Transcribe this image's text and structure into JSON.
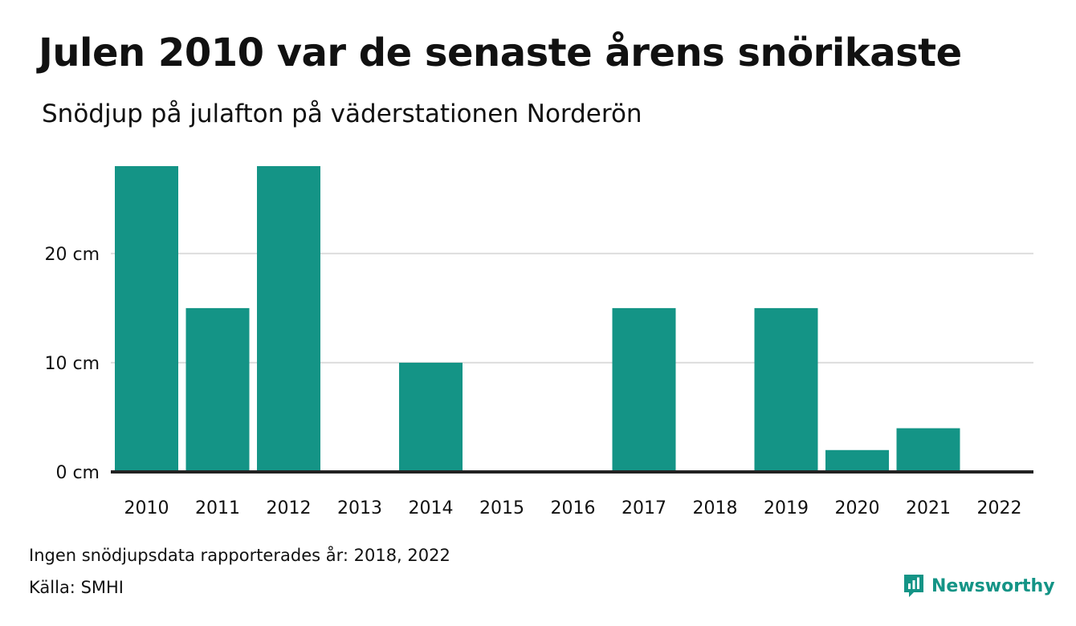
{
  "title": "Julen 2010 var de senaste årens snörikaste",
  "subtitle": "Snödjup på julafton på väderstationen Norderön",
  "footnote": "Ingen snödjupsdata rapporterades år: 2018, 2022",
  "source_prefix": "Källa: ",
  "source": "SMHI",
  "brand": {
    "name": "Newsworthy",
    "icon": "newsworthy-logo-icon",
    "color": "#149486"
  },
  "colors": {
    "bar": "#149486",
    "axis": "#222222",
    "grid": "#dddddd"
  },
  "chart_data": {
    "type": "bar",
    "categories": [
      "2010",
      "2011",
      "2012",
      "2013",
      "2014",
      "2015",
      "2016",
      "2017",
      "2018",
      "2019",
      "2020",
      "2021",
      "2022"
    ],
    "values": [
      28,
      15,
      28,
      0,
      10,
      0,
      0,
      15,
      null,
      15,
      2,
      4,
      null
    ],
    "ylim": [
      0,
      28
    ],
    "yticks": [
      0,
      10,
      20
    ],
    "ytick_labels": [
      "0 cm",
      "10 cm",
      "20 cm"
    ],
    "unit": "cm",
    "grid": true,
    "legend": "none"
  }
}
